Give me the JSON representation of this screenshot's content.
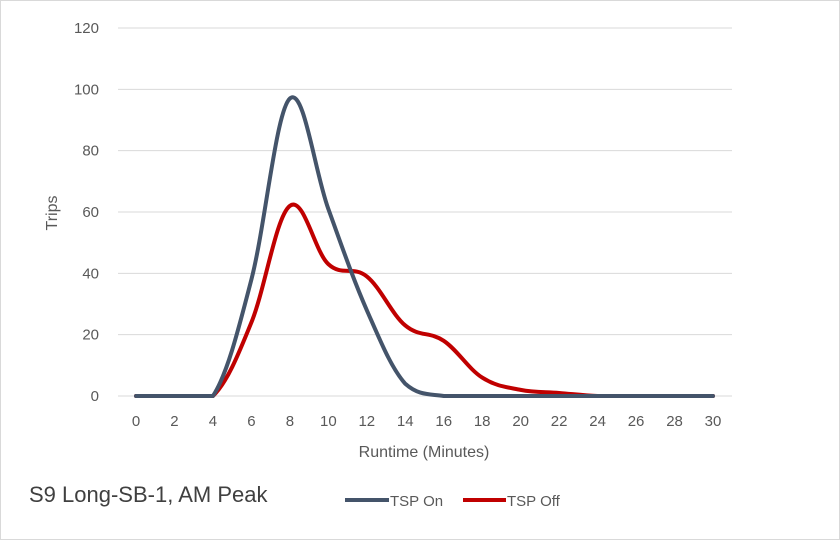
{
  "chart_data": {
    "type": "line",
    "title": "S9 Long-SB-1, AM Peak",
    "xlabel": "Runtime (Minutes)",
    "ylabel": "Trips",
    "xlim": [
      0,
      30
    ],
    "ylim": [
      0,
      120
    ],
    "x_ticks": [
      "0",
      "2",
      "4",
      "6",
      "8",
      "10",
      "12",
      "14",
      "16",
      "18",
      "20",
      "22",
      "24",
      "26",
      "28",
      "30"
    ],
    "y_ticks": [
      "0",
      "20",
      "40",
      "60",
      "80",
      "100",
      "120"
    ],
    "grid": true,
    "smooth": true,
    "legend_position": "bottom",
    "x": [
      0,
      2,
      4,
      6,
      8,
      10,
      12,
      14,
      16,
      18,
      20,
      22,
      24,
      26,
      28,
      30
    ],
    "series": [
      {
        "name": "TSP On",
        "color": "#44546a",
        "values": [
          0,
          0,
          0,
          38,
          97,
          61,
          28,
          4,
          0,
          0,
          0,
          0,
          0,
          0,
          0,
          0
        ]
      },
      {
        "name": "TSP Off",
        "color": "#c00000",
        "values": [
          0,
          0,
          0,
          24,
          62,
          43,
          39,
          23,
          18,
          6,
          2,
          1,
          0,
          0,
          0,
          0
        ]
      }
    ]
  }
}
